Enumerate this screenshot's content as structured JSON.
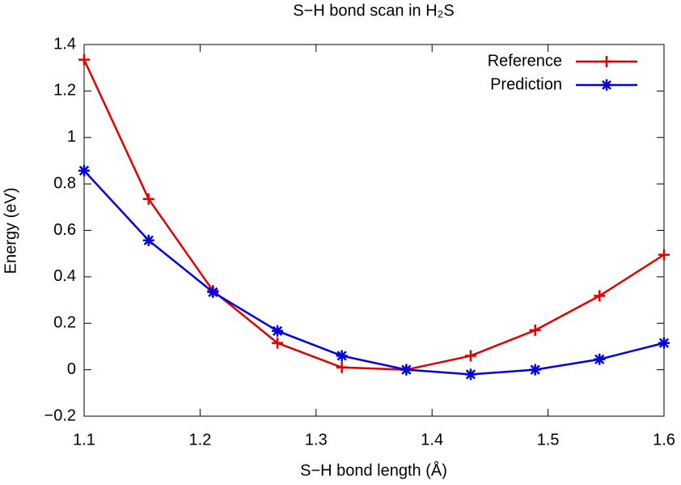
{
  "chart_data": {
    "type": "line",
    "title": "S−H bond scan in H₂S",
    "x_label": "S−H bond length (Å)",
    "y_label": "Energy (eV)",
    "x": [
      1.1,
      1.1556,
      1.2111,
      1.2667,
      1.3222,
      1.3778,
      1.4333,
      1.4889,
      1.5444,
      1.6
    ],
    "series": [
      {
        "name": "Reference",
        "color": "#e00000",
        "marker": "plus",
        "values": [
          1.335,
          0.735,
          0.34,
          0.115,
          0.01,
          0.0,
          0.06,
          0.17,
          0.318,
          0.495
        ]
      },
      {
        "name": "Prediction",
        "color": "#0000e0",
        "marker": "star",
        "values": [
          0.857,
          0.557,
          0.334,
          0.167,
          0.06,
          0.0,
          -0.02,
          0.0,
          0.045,
          0.115
        ]
      }
    ],
    "xlim": [
      1.1,
      1.6
    ],
    "xticks": [
      1.1,
      1.2,
      1.3,
      1.4,
      1.5,
      1.6
    ],
    "ylim": [
      -0.2,
      1.4
    ],
    "yticks": [
      {
        "value": -0.2,
        "label": "−0.2"
      },
      0,
      0.2,
      0.4,
      0.6,
      0.8,
      1,
      1.2,
      1.4
    ],
    "grid": false,
    "legend": "top-right"
  }
}
